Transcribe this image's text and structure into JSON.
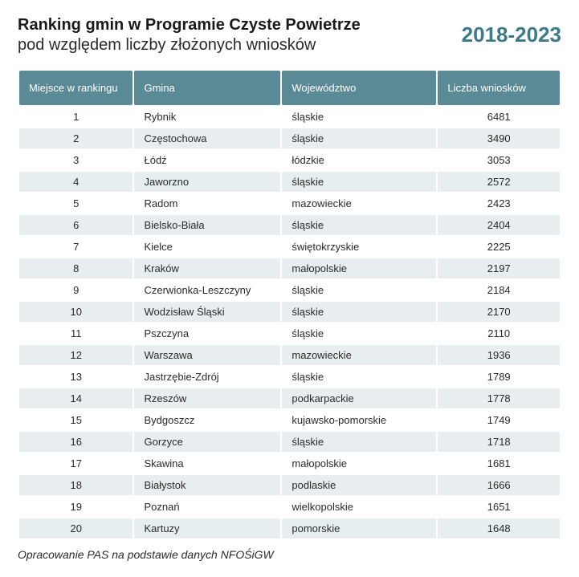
{
  "header": {
    "title_line1": "Ranking gmin w Programie Czyste Powietrze",
    "title_line2": "pod względem liczby złożonych wniosków",
    "years": "2018-2023"
  },
  "table": {
    "columns": {
      "rank": "Miejsce w rankingu",
      "gmina": "Gmina",
      "woj": "Województwo",
      "count": "Liczba wniosków"
    },
    "rows": [
      {
        "rank": "1",
        "gmina": "Rybnik",
        "woj": "śląskie",
        "count": "6481"
      },
      {
        "rank": "2",
        "gmina": "Częstochowa",
        "woj": "śląskie",
        "count": "3490"
      },
      {
        "rank": "3",
        "gmina": "Łódź",
        "woj": "łódzkie",
        "count": "3053"
      },
      {
        "rank": "4",
        "gmina": "Jaworzno",
        "woj": "śląskie",
        "count": "2572"
      },
      {
        "rank": "5",
        "gmina": "Radom",
        "woj": "mazowieckie",
        "count": "2423"
      },
      {
        "rank": "6",
        "gmina": "Bielsko-Biała",
        "woj": "śląskie",
        "count": "2404"
      },
      {
        "rank": "7",
        "gmina": "Kielce",
        "woj": "świętokrzyskie",
        "count": "2225"
      },
      {
        "rank": "8",
        "gmina": "Kraków",
        "woj": "małopolskie",
        "count": "2197"
      },
      {
        "rank": "9",
        "gmina": "Czerwionka-Leszczyny",
        "woj": "śląskie",
        "count": "2184"
      },
      {
        "rank": "10",
        "gmina": "Wodzisław Śląski",
        "woj": "śląskie",
        "count": "2170"
      },
      {
        "rank": "11",
        "gmina": "Pszczyna",
        "woj": "śląskie",
        "count": "2110"
      },
      {
        "rank": "12",
        "gmina": "Warszawa",
        "woj": "mazowieckie",
        "count": "1936"
      },
      {
        "rank": "13",
        "gmina": "Jastrzębie-Zdrój",
        "woj": "śląskie",
        "count": "1789"
      },
      {
        "rank": "14",
        "gmina": "Rzeszów",
        "woj": "podkarpackie",
        "count": "1778"
      },
      {
        "rank": "15",
        "gmina": "Bydgoszcz",
        "woj": "kujawsko-pomorskie",
        "count": "1749"
      },
      {
        "rank": "16",
        "gmina": "Gorzyce",
        "woj": "śląskie",
        "count": "1718"
      },
      {
        "rank": "17",
        "gmina": "Skawina",
        "woj": "małopolskie",
        "count": "1681"
      },
      {
        "rank": "18",
        "gmina": "Białystok",
        "woj": "podlaskie",
        "count": "1666"
      },
      {
        "rank": "19",
        "gmina": "Poznań",
        "woj": "wielkopolskie",
        "count": "1651"
      },
      {
        "rank": "20",
        "gmina": "Kartuzy",
        "woj": "pomorskie",
        "count": "1648"
      }
    ]
  },
  "footnote": "Opracowanie PAS na podstawie danych NFOŚiGW",
  "style": {
    "header_bg": "#5a8a95",
    "header_text": "#ffffff",
    "row_even_bg": "#e8eef0",
    "row_odd_bg": "#ffffff",
    "year_color": "#3d7a8a",
    "title_fontsize_pt": 15,
    "cell_fontsize_pt": 10,
    "year_fontsize_pt": 20
  }
}
